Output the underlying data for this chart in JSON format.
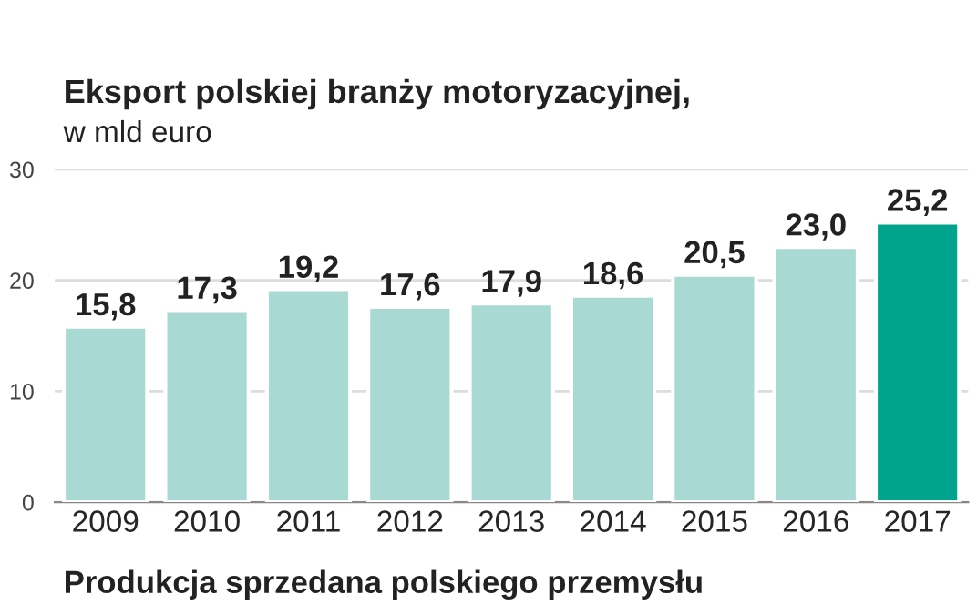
{
  "chart_data": {
    "type": "bar",
    "title": "Eksport polskiej branży motoryzacyjnej,",
    "subtitle": "w mld euro",
    "categories": [
      "2009",
      "2010",
      "2011",
      "2012",
      "2013",
      "2014",
      "2015",
      "2016",
      "2017"
    ],
    "values": [
      15.8,
      17.3,
      19.2,
      17.6,
      17.9,
      18.6,
      20.5,
      23.0,
      25.2
    ],
    "value_labels": [
      "15,8",
      "17,3",
      "19,2",
      "17,6",
      "17,9",
      "18,6",
      "20,5",
      "23,0",
      "25,2"
    ],
    "colors": [
      "#a9d9d3",
      "#a9d9d3",
      "#a9d9d3",
      "#a9d9d3",
      "#a9d9d3",
      "#a9d9d3",
      "#a9d9d3",
      "#a9d9d3",
      "#00a38c"
    ],
    "ylim": [
      0,
      30
    ],
    "yticks": [
      0,
      10,
      20,
      30
    ],
    "grid": "y",
    "legend": false,
    "annotations": [
      "Produkcja sprzedana polskiego przemysłu"
    ]
  }
}
